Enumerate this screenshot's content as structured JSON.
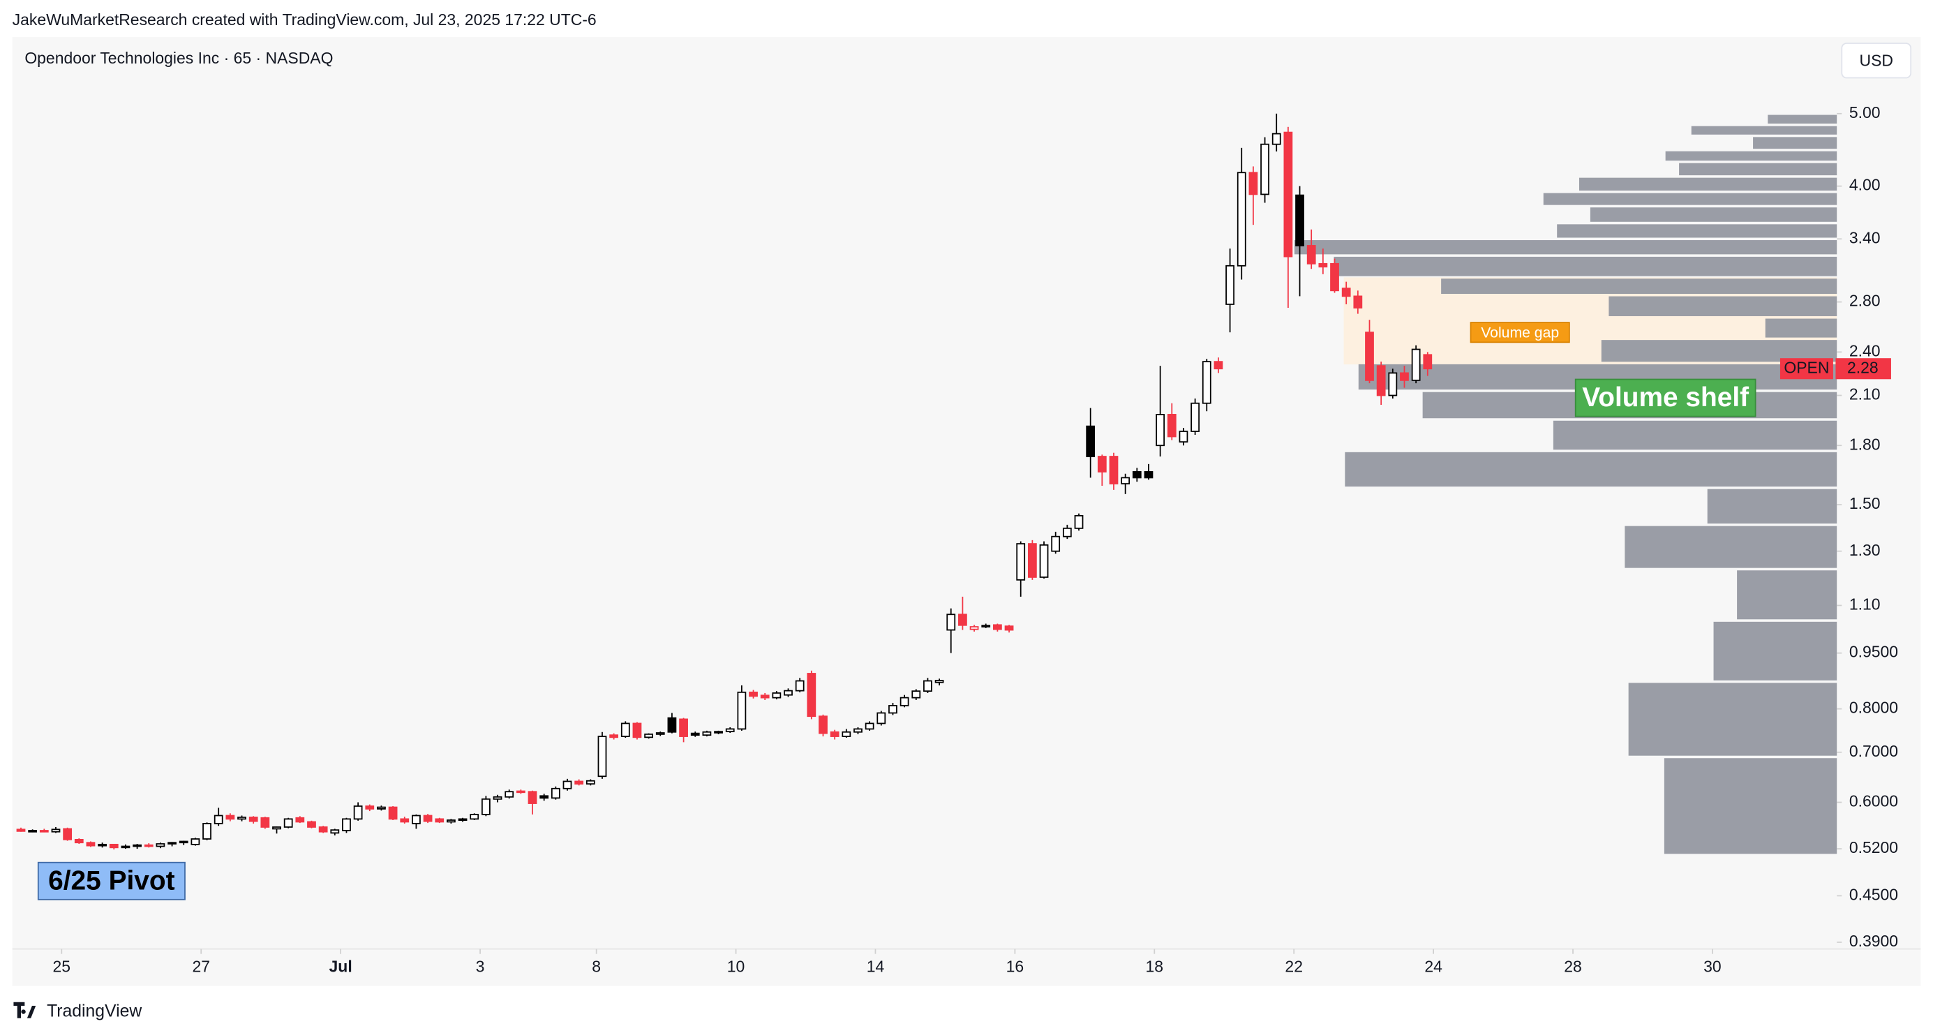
{
  "chart_data": {
    "type": "candlestick",
    "attribution": "JakeWuMarketResearch created with TradingView.com, Jul 23, 2025 17:22 UTC-6",
    "title": "Opendoor Technologies Inc · 65 · NASDAQ",
    "currency": "USD",
    "brand": "TradingView",
    "symbol": "OPEN",
    "last_price": {
      "value": 2.28,
      "label": "2.28"
    },
    "log_scale": true,
    "up_color": "#000000",
    "down_color": "#f23645",
    "ylim": [
      0.382,
      5.54
    ],
    "yticks": [
      {
        "value": 5.0,
        "label": "5.00"
      },
      {
        "value": 4.0,
        "label": "4.00"
      },
      {
        "value": 3.4,
        "label": "3.40"
      },
      {
        "value": 2.8,
        "label": "2.80"
      },
      {
        "value": 2.4,
        "label": "2.40"
      },
      {
        "value": 2.1,
        "label": "2.10"
      },
      {
        "value": 1.8,
        "label": "1.80"
      },
      {
        "value": 1.5,
        "label": "1.50"
      },
      {
        "value": 1.3,
        "label": "1.30"
      },
      {
        "value": 1.1,
        "label": "1.10"
      },
      {
        "value": 0.95,
        "label": "0.9500"
      },
      {
        "value": 0.8,
        "label": "0.8000"
      },
      {
        "value": 0.7,
        "label": "0.7000"
      },
      {
        "value": 0.6,
        "label": "0.6000"
      },
      {
        "value": 0.52,
        "label": "0.5200"
      },
      {
        "value": 0.45,
        "label": "0.4500"
      },
      {
        "value": 0.39,
        "label": "0.3900"
      }
    ],
    "xlim": [
      -0.24,
      156.7
    ],
    "xticks": [
      {
        "value": 4,
        "label": "25"
      },
      {
        "value": 16,
        "label": "27"
      },
      {
        "value": 28,
        "label": "Jul"
      },
      {
        "value": 40,
        "label": "3"
      },
      {
        "value": 50,
        "label": "8"
      },
      {
        "value": 62,
        "label": "10"
      },
      {
        "value": 74,
        "label": "14"
      },
      {
        "value": 86,
        "label": "16"
      },
      {
        "value": 98,
        "label": "18"
      },
      {
        "value": 110,
        "label": "22"
      },
      {
        "value": 122,
        "label": "24"
      },
      {
        "value": 134,
        "label": "28"
      },
      {
        "value": 146,
        "label": "30"
      }
    ],
    "candles": [
      [
        0.552,
        0.555,
        0.548,
        0.549
      ],
      [
        0.549,
        0.552,
        0.547,
        0.55
      ],
      [
        0.55,
        0.553,
        0.547,
        0.548
      ],
      [
        0.548,
        0.556,
        0.546,
        0.552
      ],
      [
        0.553,
        0.555,
        0.533,
        0.535
      ],
      [
        0.535,
        0.537,
        0.528,
        0.53
      ],
      [
        0.53,
        0.532,
        0.523,
        0.525
      ],
      [
        0.525,
        0.53,
        0.522,
        0.527
      ],
      [
        0.527,
        0.528,
        0.519,
        0.522
      ],
      [
        0.522,
        0.527,
        0.52,
        0.524
      ],
      [
        0.524,
        0.528,
        0.52,
        0.526
      ],
      [
        0.526,
        0.529,
        0.522,
        0.524
      ],
      [
        0.524,
        0.53,
        0.521,
        0.528
      ],
      [
        0.528,
        0.531,
        0.524,
        0.53
      ],
      [
        0.53,
        0.533,
        0.526,
        0.532
      ],
      [
        0.527,
        0.538,
        0.525,
        0.536
      ],
      [
        0.536,
        0.564,
        0.534,
        0.562
      ],
      [
        0.562,
        0.59,
        0.558,
        0.576
      ],
      [
        0.576,
        0.58,
        0.566,
        0.57
      ],
      [
        0.57,
        0.576,
        0.566,
        0.573
      ],
      [
        0.573,
        0.575,
        0.562,
        0.566
      ],
      [
        0.572,
        0.574,
        0.553,
        0.556
      ],
      [
        0.553,
        0.557,
        0.545,
        0.556
      ],
      [
        0.556,
        0.572,
        0.554,
        0.57
      ],
      [
        0.572,
        0.575,
        0.563,
        0.565
      ],
      [
        0.565,
        0.567,
        0.554,
        0.556
      ],
      [
        0.556,
        0.558,
        0.546,
        0.548
      ],
      [
        0.546,
        0.553,
        0.542,
        0.551
      ],
      [
        0.55,
        0.572,
        0.546,
        0.57
      ],
      [
        0.57,
        0.6,
        0.567,
        0.593
      ],
      [
        0.593,
        0.596,
        0.584,
        0.588
      ],
      [
        0.588,
        0.594,
        0.585,
        0.591
      ],
      [
        0.591,
        0.593,
        0.568,
        0.57
      ],
      [
        0.57,
        0.574,
        0.562,
        0.565
      ],
      [
        0.562,
        0.578,
        0.553,
        0.576
      ],
      [
        0.576,
        0.579,
        0.563,
        0.566
      ],
      [
        0.57,
        0.572,
        0.563,
        0.565
      ],
      [
        0.565,
        0.57,
        0.562,
        0.568
      ],
      [
        0.568,
        0.572,
        0.565,
        0.57
      ],
      [
        0.57,
        0.58,
        0.568,
        0.578
      ],
      [
        0.578,
        0.612,
        0.575,
        0.606
      ],
      [
        0.606,
        0.614,
        0.6,
        0.61
      ],
      [
        0.61,
        0.624,
        0.607,
        0.62
      ],
      [
        0.621,
        0.624,
        0.616,
        0.619
      ],
      [
        0.62,
        0.622,
        0.578,
        0.598
      ],
      [
        0.612,
        0.616,
        0.603,
        0.608
      ],
      [
        0.608,
        0.63,
        0.605,
        0.626
      ],
      [
        0.626,
        0.645,
        0.622,
        0.64
      ],
      [
        0.64,
        0.644,
        0.632,
        0.635
      ],
      [
        0.635,
        0.644,
        0.632,
        0.641
      ],
      [
        0.65,
        0.745,
        0.645,
        0.735
      ],
      [
        0.738,
        0.742,
        0.728,
        0.733
      ],
      [
        0.735,
        0.77,
        0.732,
        0.765
      ],
      [
        0.765,
        0.768,
        0.728,
        0.733
      ],
      [
        0.733,
        0.742,
        0.73,
        0.74
      ],
      [
        0.74,
        0.746,
        0.736,
        0.743
      ],
      [
        0.778,
        0.79,
        0.742,
        0.745
      ],
      [
        0.775,
        0.778,
        0.722,
        0.735
      ],
      [
        0.742,
        0.746,
        0.734,
        0.738
      ],
      [
        0.738,
        0.748,
        0.735,
        0.745
      ],
      [
        0.744,
        0.748,
        0.74,
        0.746
      ],
      [
        0.746,
        0.756,
        0.743,
        0.752
      ],
      [
        0.752,
        0.86,
        0.748,
        0.842
      ],
      [
        0.842,
        0.848,
        0.826,
        0.832
      ],
      [
        0.834,
        0.84,
        0.822,
        0.828
      ],
      [
        0.828,
        0.845,
        0.824,
        0.84
      ],
      [
        0.835,
        0.852,
        0.83,
        0.846
      ],
      [
        0.846,
        0.88,
        0.842,
        0.872
      ],
      [
        0.892,
        0.9,
        0.775,
        0.782
      ],
      [
        0.782,
        0.786,
        0.735,
        0.742
      ],
      [
        0.745,
        0.75,
        0.728,
        0.735
      ],
      [
        0.735,
        0.752,
        0.732,
        0.745
      ],
      [
        0.745,
        0.756,
        0.74,
        0.752
      ],
      [
        0.752,
        0.77,
        0.748,
        0.765
      ],
      [
        0.765,
        0.795,
        0.76,
        0.79
      ],
      [
        0.79,
        0.815,
        0.785,
        0.808
      ],
      [
        0.808,
        0.835,
        0.804,
        0.828
      ],
      [
        0.828,
        0.85,
        0.822,
        0.845
      ],
      [
        0.845,
        0.88,
        0.84,
        0.872
      ],
      [
        0.868,
        0.878,
        0.86,
        0.873
      ],
      [
        1.02,
        1.09,
        0.95,
        1.07
      ],
      [
        1.07,
        1.13,
        1.02,
        1.035
      ],
      [
        1.022,
        1.036,
        1.015,
        1.03
      ],
      [
        1.03,
        1.04,
        1.026,
        1.034
      ],
      [
        1.036,
        1.04,
        1.015,
        1.022
      ],
      [
        1.032,
        1.036,
        1.012,
        1.02
      ],
      [
        1.19,
        1.34,
        1.13,
        1.33
      ],
      [
        1.33,
        1.345,
        1.19,
        1.2
      ],
      [
        1.2,
        1.34,
        1.195,
        1.325
      ],
      [
        1.3,
        1.38,
        1.29,
        1.36
      ],
      [
        1.36,
        1.41,
        1.35,
        1.395
      ],
      [
        1.395,
        1.46,
        1.385,
        1.45
      ],
      [
        1.91,
        2.02,
        1.63,
        1.74
      ],
      [
        1.74,
        1.75,
        1.59,
        1.66
      ],
      [
        1.74,
        1.76,
        1.57,
        1.6
      ],
      [
        1.6,
        1.65,
        1.55,
        1.63
      ],
      [
        1.66,
        1.68,
        1.61,
        1.63
      ],
      [
        1.66,
        1.7,
        1.62,
        1.63
      ],
      [
        1.8,
        2.3,
        1.74,
        1.98
      ],
      [
        1.98,
        2.05,
        1.83,
        1.85
      ],
      [
        1.82,
        1.9,
        1.8,
        1.88
      ],
      [
        1.88,
        2.08,
        1.86,
        2.05
      ],
      [
        2.05,
        2.35,
        2.0,
        2.33
      ],
      [
        2.33,
        2.36,
        2.25,
        2.28
      ],
      [
        2.78,
        3.3,
        2.55,
        3.13
      ],
      [
        3.13,
        4.5,
        3.0,
        4.17
      ],
      [
        4.17,
        4.25,
        3.55,
        3.9
      ],
      [
        3.9,
        4.65,
        3.8,
        4.55
      ],
      [
        4.55,
        5.0,
        4.45,
        4.7
      ],
      [
        4.72,
        4.8,
        2.75,
        3.22
      ],
      [
        3.89,
        4.0,
        2.85,
        3.33
      ],
      [
        3.33,
        3.5,
        3.1,
        3.15
      ],
      [
        3.15,
        3.3,
        3.05,
        3.12
      ],
      [
        3.15,
        3.2,
        2.88,
        2.9
      ],
      [
        2.92,
        2.98,
        2.78,
        2.85
      ],
      [
        2.85,
        2.9,
        2.7,
        2.75
      ],
      [
        2.55,
        2.65,
        2.18,
        2.2
      ],
      [
        2.3,
        2.33,
        2.04,
        2.1
      ],
      [
        2.1,
        2.28,
        2.08,
        2.25
      ],
      [
        2.25,
        2.3,
        2.15,
        2.2
      ],
      [
        2.2,
        2.45,
        2.18,
        2.42
      ],
      [
        2.38,
        2.4,
        2.23,
        2.28
      ]
    ],
    "volume_profile": {
      "color": "#9598a1",
      "levels": [
        5.0,
        4.83,
        4.67,
        4.47,
        4.31,
        4.12,
        3.93,
        3.76,
        3.57,
        3.4,
        3.23,
        3.02,
        2.86,
        2.67,
        2.5,
        2.32,
        2.13,
        1.95,
        1.77,
        1.58,
        1.41,
        1.23,
        1.05,
        0.87,
        0.69,
        0.51
      ],
      "volumes": [
        56,
        118,
        68,
        139,
        128,
        209,
        238,
        200,
        227,
        440,
        408,
        321,
        185,
        58,
        191,
        388,
        336,
        230,
        399,
        105,
        172,
        81,
        100,
        169,
        140
      ]
    },
    "volume_gap_zone": [
      2.31,
      3.02
    ],
    "annotations": [
      {
        "text": "6/25 Pivot",
        "color": "#8fbcf7"
      },
      {
        "text": "Volume gap",
        "color": "#f59b14"
      },
      {
        "text": "Volume shelf",
        "color": "#4caf50"
      }
    ]
  }
}
